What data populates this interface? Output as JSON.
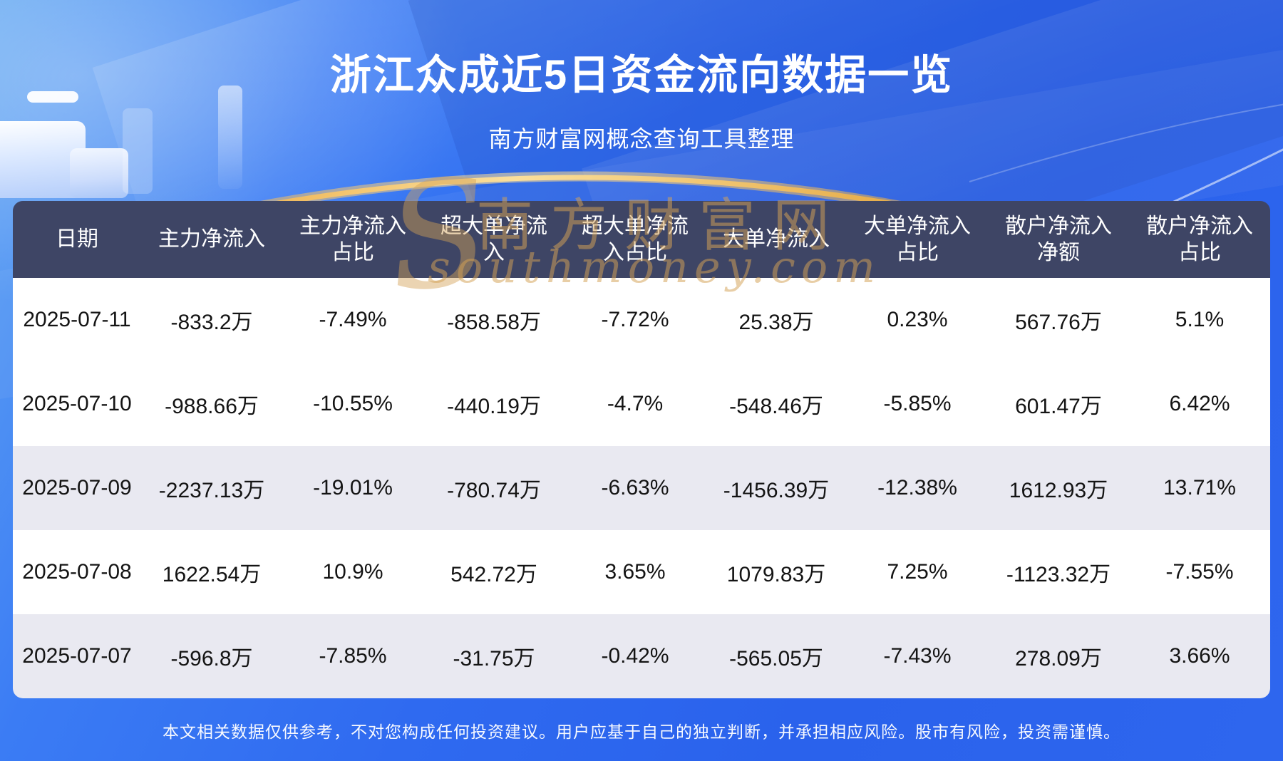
{
  "page": {
    "title": "浙江众成近5日资金流向数据一览",
    "subtitle": "南方财富网概念查询工具整理",
    "disclaimer": "本文相关数据仅供参考，不对您构成任何投资建议。用户应基于自己的独立判断，并承担相应风险。股市有风险，投资需谨慎。"
  },
  "watermark": {
    "initial": "S",
    "brand": "南方财富网",
    "domain": "southmoney.com"
  },
  "colors": {
    "background_blue": "#2f6af0",
    "header_bg": "#3e4565",
    "row_bg": "#ffffff",
    "row_alt_bg": "#e9e9f1",
    "title_text": "#ffffff",
    "body_text": "#141414",
    "watermark_gold": "#d4a256",
    "arc_gold": "#f6c85e"
  },
  "chart_data": {
    "type": "table",
    "title": "浙江众成近5日资金流向数据一览",
    "columns": [
      "日期",
      "主力净流入",
      "主力净流入占比",
      "超大单净流入",
      "超大单净流入占比",
      "大单净流入",
      "大单净流入占比",
      "散户净流入净额",
      "散户净流入占比"
    ],
    "rows": [
      [
        "2025-07-11",
        "-833.2万",
        "-7.49%",
        "-858.58万",
        "-7.72%",
        "25.38万",
        "0.23%",
        "567.76万",
        "5.1%"
      ],
      [
        "2025-07-10",
        "-988.66万",
        "-10.55%",
        "-440.19万",
        "-4.7%",
        "-548.46万",
        "-5.85%",
        "601.47万",
        "6.42%"
      ],
      [
        "2025-07-09",
        "-2237.13万",
        "-19.01%",
        "-780.74万",
        "-6.63%",
        "-1456.39万",
        "-12.38%",
        "1612.93万",
        "13.71%"
      ],
      [
        "2025-07-08",
        "1622.54万",
        "10.9%",
        "542.72万",
        "3.65%",
        "1079.83万",
        "7.25%",
        "-1123.32万",
        "-7.55%"
      ],
      [
        "2025-07-07",
        "-596.8万",
        "-7.85%",
        "-31.75万",
        "-0.42%",
        "-565.05万",
        "-7.43%",
        "278.09万",
        "3.66%"
      ]
    ]
  }
}
